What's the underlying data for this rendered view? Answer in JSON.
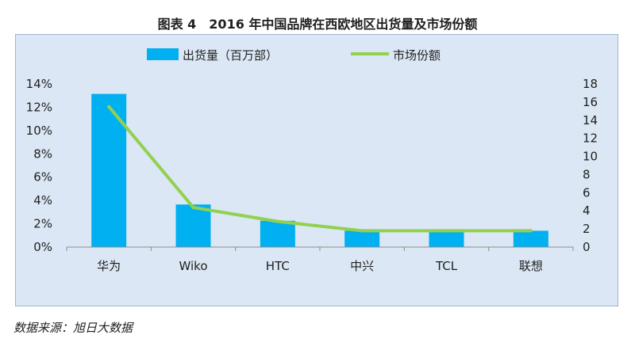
{
  "page": {
    "title": "图表 4　2016 年中国品牌在西欧地区出货量及市场份额",
    "source": "数据来源：旭日大数据"
  },
  "colors": {
    "bar": "#00b0f0",
    "line": "#92d050",
    "plot_bg": "#dbe7f4",
    "plot_border": "#9eb6d3",
    "axis": "#8c8c8c"
  },
  "chart_data": {
    "type": "bar",
    "title": "图表 4　2016 年中国品牌在西欧地区出货量及市场份额",
    "categories": [
      "华为",
      "Wiko",
      "HTC",
      "中兴",
      "TCL",
      "联想"
    ],
    "series": [
      {
        "name": "出货量（百万部）",
        "type": "bar",
        "axis": "right",
        "values": [
          16.9,
          4.7,
          2.9,
          1.8,
          1.8,
          1.8
        ]
      },
      {
        "name": "市场份额",
        "type": "line",
        "axis": "left",
        "values": [
          0.1205,
          0.034,
          0.022,
          0.014,
          0.014,
          0.014
        ]
      }
    ],
    "y_left": {
      "ylim": [
        0,
        0.14
      ],
      "ticks": [
        "0%",
        "2%",
        "4%",
        "6%",
        "8%",
        "10%",
        "12%",
        "14%"
      ]
    },
    "y_right": {
      "ylim": [
        0,
        18
      ],
      "ticks": [
        "0",
        "2",
        "4",
        "6",
        "8",
        "10",
        "12",
        "14",
        "16",
        "18"
      ]
    },
    "legend_position": "top",
    "grid": false
  }
}
